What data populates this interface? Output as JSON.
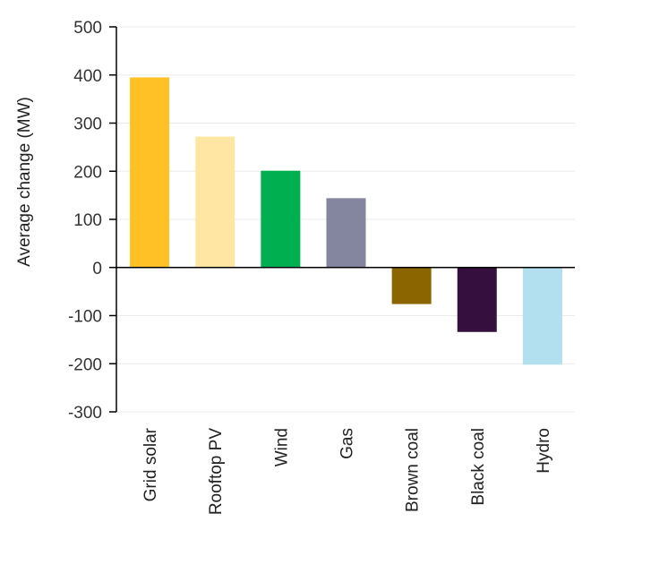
{
  "chart_data": {
    "type": "bar",
    "title": "",
    "xlabel": "",
    "ylabel": "Average change (MW)",
    "ylim": [
      -300,
      500
    ],
    "yticks": [
      -300,
      -200,
      -100,
      0,
      100,
      200,
      300,
      400,
      500
    ],
    "ytick_labels": [
      "-300",
      "-200",
      "-100",
      "0",
      "100",
      "200",
      "300",
      "400",
      "500"
    ],
    "grid": true,
    "categories": [
      "Grid solar",
      "Rooftop PV",
      "Wind",
      "Gas",
      "Brown coal",
      "Black coal",
      "Hydro"
    ],
    "values": [
      395,
      272,
      201,
      144,
      -76,
      -134,
      -202
    ],
    "colors": [
      "#FFC125",
      "#FFE6A3",
      "#00B050",
      "#83869E",
      "#8B6500",
      "#35103E",
      "#B2E0EE"
    ]
  }
}
